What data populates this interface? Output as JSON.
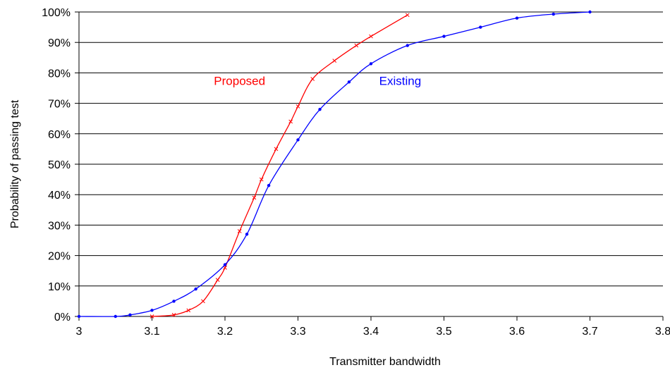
{
  "chart_data": {
    "type": "line",
    "title": "",
    "xlabel": "Transmitter bandwidth",
    "ylabel": "Probability of passing test",
    "xlim": [
      3,
      3.8
    ],
    "ylim": [
      0,
      100
    ],
    "x_ticks": [
      3,
      3.1,
      3.2,
      3.3,
      3.4,
      3.5,
      3.6,
      3.7,
      3.8
    ],
    "x_tick_labels": [
      "3",
      "3.1",
      "3.2",
      "3.3",
      "3.4",
      "3.5",
      "3.6",
      "3.7",
      "3.8"
    ],
    "y_ticks": [
      0,
      10,
      20,
      30,
      40,
      50,
      60,
      70,
      80,
      90,
      100
    ],
    "y_tick_labels": [
      "0%",
      "10%",
      "20%",
      "30%",
      "40%",
      "50%",
      "60%",
      "70%",
      "80%",
      "90%",
      "100%"
    ],
    "grid": "horizontal",
    "legend": "none",
    "series": [
      {
        "name": "Proposed",
        "color": "#ff0000",
        "marker": "x",
        "x": [
          3.1,
          3.13,
          3.15,
          3.17,
          3.19,
          3.2,
          3.22,
          3.24,
          3.25,
          3.27,
          3.29,
          3.3,
          3.32,
          3.35,
          3.38,
          3.4,
          3.45
        ],
        "y": [
          0,
          0.5,
          2,
          5,
          12,
          16,
          28,
          39,
          45,
          55,
          64,
          69,
          78,
          84,
          89,
          92,
          99
        ]
      },
      {
        "name": "Existing",
        "color": "#0000ff",
        "marker": "dot",
        "x": [
          3.0,
          3.05,
          3.07,
          3.1,
          3.13,
          3.16,
          3.2,
          3.23,
          3.26,
          3.3,
          3.33,
          3.37,
          3.4,
          3.45,
          3.5,
          3.55,
          3.6,
          3.65,
          3.7
        ],
        "y": [
          0,
          0,
          0.5,
          2,
          5,
          9,
          17,
          27,
          43,
          58,
          68,
          77,
          83,
          89,
          92,
          95,
          98,
          99.3,
          100
        ]
      }
    ],
    "annotations": [
      {
        "text": "Proposed",
        "x": 3.22,
        "y": 76,
        "color": "#ff0000"
      },
      {
        "text": "Existing",
        "x": 3.44,
        "y": 76,
        "color": "#0000ff"
      }
    ]
  }
}
